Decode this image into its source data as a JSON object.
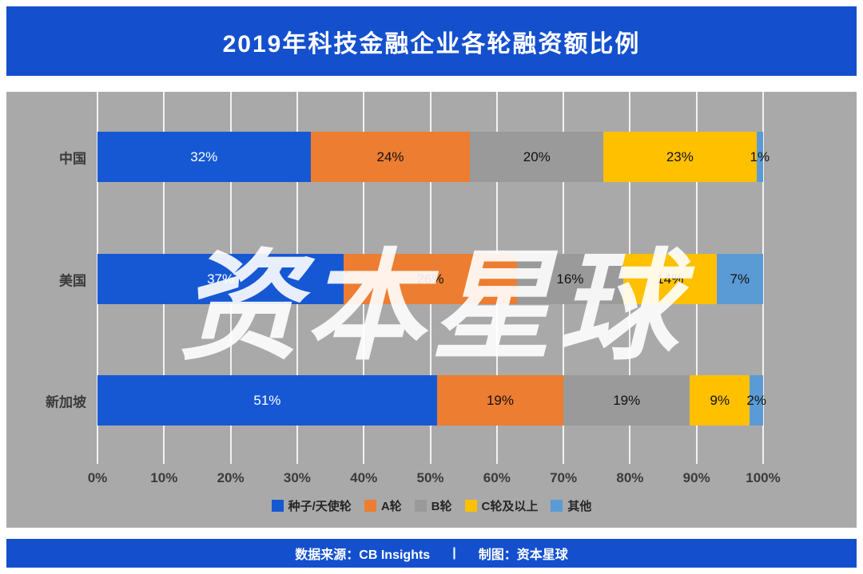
{
  "header": {
    "title": "2019年科技金融企业各轮融资额比例"
  },
  "watermark": {
    "text": "资本星球"
  },
  "footer": {
    "source": "数据来源：CB Insights",
    "divider": "|",
    "credit": "制图：资本星球"
  },
  "colors": {
    "brand_blue": "#1450CE",
    "chart_bg": "#A9A9A9",
    "gridline": "#FFFFFF"
  },
  "chart_data": {
    "type": "bar",
    "orientation": "horizontal",
    "stacked": true,
    "title": "2019年科技金融企业各轮融资额比例",
    "categories": [
      "中国",
      "美国",
      "新加坡"
    ],
    "series": [
      {
        "name": "种子/天使轮",
        "color": "#1658D4",
        "label_color": "#FFFFFF",
        "values": [
          32,
          37,
          51
        ]
      },
      {
        "name": "A轮",
        "color": "#ED7D31",
        "label_color": "#111111",
        "values": [
          24,
          26,
          19
        ]
      },
      {
        "name": "B轮",
        "color": "#9A9A9A",
        "label_color": "#111111",
        "values": [
          20,
          16,
          19
        ]
      },
      {
        "name": "C轮及以上",
        "color": "#FFC000",
        "label_color": "#111111",
        "values": [
          23,
          14,
          9
        ]
      },
      {
        "name": "其他",
        "color": "#5B9BD5",
        "label_color": "#111111",
        "values": [
          1,
          7,
          2
        ]
      }
    ],
    "x_ticks": [
      "0%",
      "10%",
      "20%",
      "30%",
      "40%",
      "50%",
      "60%",
      "70%",
      "80%",
      "90%",
      "100%"
    ],
    "xlim": [
      0,
      100
    ],
    "grid": true,
    "legend_position": "bottom"
  }
}
